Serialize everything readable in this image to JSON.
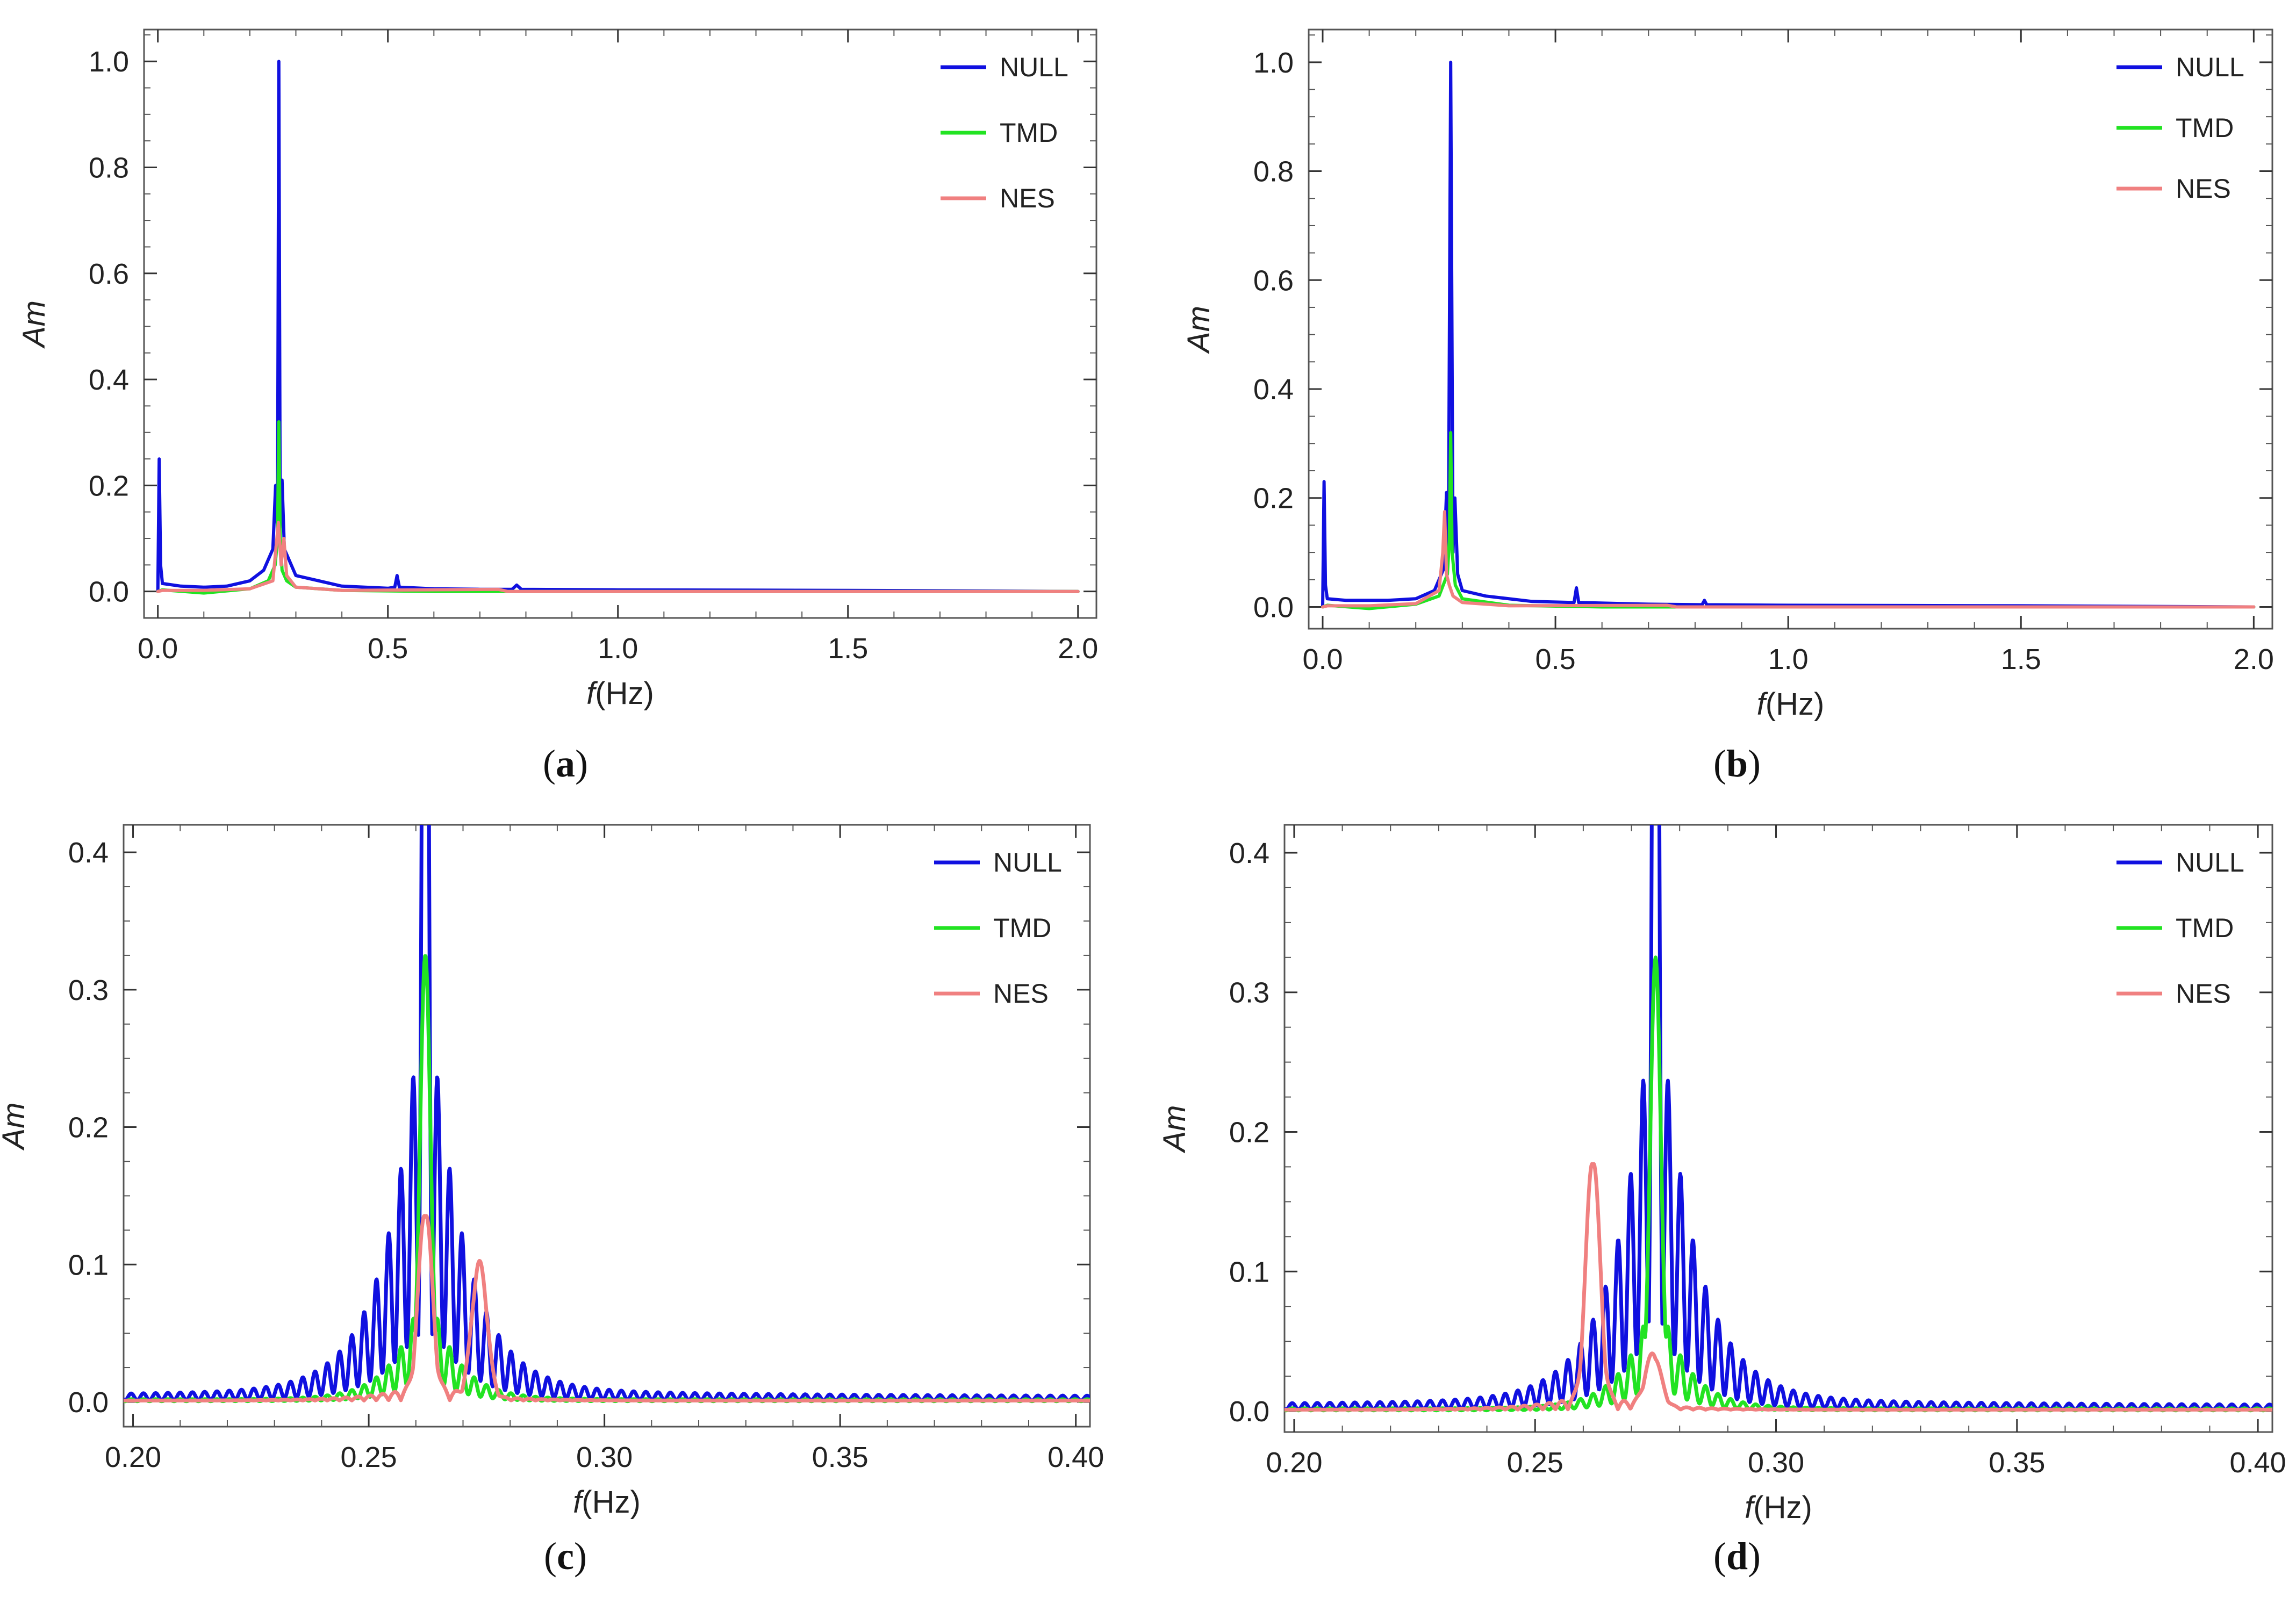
{
  "figure": {
    "colors": {
      "NULL": "#1010e0",
      "TMD": "#22e322",
      "NES": "#f08080"
    },
    "legend": [
      "NULL",
      "TMD",
      "NES"
    ]
  },
  "chart_data": [
    {
      "panel_label": "a",
      "type": "line",
      "xlabel_italic": "f",
      "xlabel_unit": "(Hz)",
      "ylabel": "Am",
      "xlim": [
        -0.03,
        2.04
      ],
      "ylim": [
        -0.05,
        1.06
      ],
      "xticks": [
        0.0,
        0.5,
        1.0,
        1.5,
        2.0
      ],
      "xtick_labels": [
        "0.0",
        "0.5",
        "1.0",
        "1.5",
        "2.0"
      ],
      "yticks": [
        0.0,
        0.2,
        0.4,
        0.6,
        0.8,
        1.0
      ],
      "ytick_labels": [
        "0.0",
        "0.2",
        "0.4",
        "0.6",
        "0.8",
        "1.0"
      ],
      "legend_position": "top-right",
      "series": [
        {
          "name": "NULL",
          "points": [
            [
              0.0,
              0.0
            ],
            [
              0.003,
              0.25
            ],
            [
              0.006,
              0.05
            ],
            [
              0.01,
              0.015
            ],
            [
              0.05,
              0.01
            ],
            [
              0.1,
              0.008
            ],
            [
              0.15,
              0.01
            ],
            [
              0.2,
              0.02
            ],
            [
              0.23,
              0.04
            ],
            [
              0.25,
              0.08
            ],
            [
              0.256,
              0.2
            ],
            [
              0.26,
              0.12
            ],
            [
              0.263,
              1.0
            ],
            [
              0.266,
              0.12
            ],
            [
              0.27,
              0.21
            ],
            [
              0.275,
              0.08
            ],
            [
              0.3,
              0.03
            ],
            [
              0.35,
              0.02
            ],
            [
              0.4,
              0.01
            ],
            [
              0.45,
              0.008
            ],
            [
              0.5,
              0.006
            ],
            [
              0.515,
              0.008
            ],
            [
              0.52,
              0.03
            ],
            [
              0.525,
              0.008
            ],
            [
              0.6,
              0.005
            ],
            [
              0.7,
              0.004
            ],
            [
              0.77,
              0.004
            ],
            [
              0.78,
              0.012
            ],
            [
              0.79,
              0.004
            ],
            [
              1.0,
              0.003
            ],
            [
              1.5,
              0.002
            ],
            [
              2.0,
              0.0
            ]
          ]
        },
        {
          "name": "TMD",
          "points": [
            [
              0.0,
              0.0
            ],
            [
              0.01,
              0.003
            ],
            [
              0.1,
              -0.003
            ],
            [
              0.2,
              0.005
            ],
            [
              0.24,
              0.02
            ],
            [
              0.255,
              0.05
            ],
            [
              0.26,
              0.1
            ],
            [
              0.263,
              0.32
            ],
            [
              0.266,
              0.1
            ],
            [
              0.27,
              0.04
            ],
            [
              0.28,
              0.02
            ],
            [
              0.3,
              0.008
            ],
            [
              0.4,
              0.002
            ],
            [
              0.6,
              0.0
            ],
            [
              1.0,
              0.0
            ],
            [
              2.0,
              0.0
            ]
          ]
        },
        {
          "name": "NES",
          "points": [
            [
              0.0,
              0.0
            ],
            [
              0.01,
              0.002
            ],
            [
              0.1,
              0.002
            ],
            [
              0.2,
              0.005
            ],
            [
              0.25,
              0.02
            ],
            [
              0.262,
              0.13
            ],
            [
              0.268,
              0.05
            ],
            [
              0.274,
              0.1
            ],
            [
              0.28,
              0.03
            ],
            [
              0.3,
              0.008
            ],
            [
              0.4,
              0.002
            ],
            [
              0.74,
              0.004
            ],
            [
              0.76,
              0.0
            ],
            [
              1.0,
              0.0
            ],
            [
              2.0,
              0.0
            ]
          ]
        }
      ]
    },
    {
      "panel_label": "b",
      "type": "line",
      "xlabel_italic": "f",
      "xlabel_unit": "(Hz)",
      "ylabel": "Am",
      "xlim": [
        -0.03,
        2.04
      ],
      "ylim": [
        -0.04,
        1.06
      ],
      "xticks": [
        0.0,
        0.5,
        1.0,
        1.5,
        2.0
      ],
      "xtick_labels": [
        "0.0",
        "0.5",
        "1.0",
        "1.5",
        "2.0"
      ],
      "yticks": [
        0.0,
        0.2,
        0.4,
        0.6,
        0.8,
        1.0
      ],
      "ytick_labels": [
        "0.0",
        "0.2",
        "0.4",
        "0.6",
        "0.8",
        "1.0"
      ],
      "legend_position": "top-right",
      "series": [
        {
          "name": "NULL",
          "points": [
            [
              0.0,
              0.0
            ],
            [
              0.003,
              0.23
            ],
            [
              0.006,
              0.04
            ],
            [
              0.01,
              0.015
            ],
            [
              0.05,
              0.012
            ],
            [
              0.14,
              0.012
            ],
            [
              0.2,
              0.015
            ],
            [
              0.24,
              0.03
            ],
            [
              0.26,
              0.07
            ],
            [
              0.266,
              0.21
            ],
            [
              0.27,
              0.1
            ],
            [
              0.275,
              1.0
            ],
            [
              0.28,
              0.1
            ],
            [
              0.284,
              0.2
            ],
            [
              0.29,
              0.06
            ],
            [
              0.3,
              0.03
            ],
            [
              0.35,
              0.02
            ],
            [
              0.45,
              0.01
            ],
            [
              0.54,
              0.008
            ],
            [
              0.545,
              0.035
            ],
            [
              0.55,
              0.008
            ],
            [
              0.7,
              0.005
            ],
            [
              0.815,
              0.004
            ],
            [
              0.82,
              0.012
            ],
            [
              0.825,
              0.004
            ],
            [
              1.0,
              0.003
            ],
            [
              1.5,
              0.002
            ],
            [
              2.0,
              0.0
            ]
          ]
        },
        {
          "name": "TMD",
          "points": [
            [
              0.0,
              0.0
            ],
            [
              0.01,
              0.003
            ],
            [
              0.1,
              -0.003
            ],
            [
              0.2,
              0.005
            ],
            [
              0.25,
              0.02
            ],
            [
              0.268,
              0.06
            ],
            [
              0.272,
              0.12
            ],
            [
              0.275,
              0.32
            ],
            [
              0.278,
              0.1
            ],
            [
              0.285,
              0.04
            ],
            [
              0.3,
              0.015
            ],
            [
              0.4,
              0.003
            ],
            [
              0.6,
              0.0
            ],
            [
              1.0,
              0.0
            ],
            [
              2.0,
              0.0
            ]
          ]
        },
        {
          "name": "NES",
          "points": [
            [
              0.0,
              0.0
            ],
            [
              0.01,
              0.002
            ],
            [
              0.1,
              0.002
            ],
            [
              0.2,
              0.006
            ],
            [
              0.25,
              0.03
            ],
            [
              0.258,
              0.1
            ],
            [
              0.262,
              0.175
            ],
            [
              0.266,
              0.06
            ],
            [
              0.272,
              0.04
            ],
            [
              0.28,
              0.02
            ],
            [
              0.3,
              0.008
            ],
            [
              0.4,
              0.002
            ],
            [
              0.74,
              0.003
            ],
            [
              0.76,
              0.0
            ],
            [
              1.0,
              0.0
            ],
            [
              2.0,
              0.0
            ]
          ]
        }
      ]
    },
    {
      "panel_label": "c",
      "type": "line",
      "xlabel_italic": "f",
      "xlabel_unit": "(Hz)",
      "ylabel": "Am",
      "xlim": [
        0.198,
        0.403
      ],
      "ylim": [
        -0.018,
        0.42
      ],
      "xticks": [
        0.2,
        0.25,
        0.3,
        0.35,
        0.4
      ],
      "xtick_labels": [
        "0.20",
        "0.25",
        "0.30",
        "0.35",
        "0.40"
      ],
      "yticks": [
        0.0,
        0.1,
        0.2,
        0.3,
        0.4
      ],
      "ytick_labels": [
        "0.0",
        "0.1",
        "0.2",
        "0.3",
        "0.4"
      ],
      "legend_position": "top-right",
      "synthesis": {
        "NULL": {
          "center": 0.262,
          "main_peak": 1.0,
          "envelope_amp": 0.32,
          "envelope_width": 0.0075,
          "floor": 0.004,
          "period": 0.0026
        },
        "TMD": {
          "center": 0.262,
          "main_peak": 0.325,
          "envelope_amp": 0.09,
          "envelope_width": 0.006,
          "floor": 0.002,
          "period": 0.0026
        },
        "NES": {
          "center": 0.262,
          "main_peak": 0.133,
          "secondary_center": 0.2735,
          "secondary_peak": 0.098,
          "floor": 0.001
        }
      }
    },
    {
      "panel_label": "d",
      "type": "line",
      "xlabel_italic": "f",
      "xlabel_unit": "(Hz)",
      "ylabel": "Am",
      "xlim": [
        0.198,
        0.403
      ],
      "ylim": [
        -0.015,
        0.42
      ],
      "xticks": [
        0.2,
        0.25,
        0.3,
        0.35,
        0.4
      ],
      "xtick_labels": [
        "0.20",
        "0.25",
        "0.30",
        "0.35",
        "0.40"
      ],
      "yticks": [
        0.0,
        0.1,
        0.2,
        0.3,
        0.4
      ],
      "ytick_labels": [
        "0.0",
        "0.1",
        "0.2",
        "0.3",
        "0.4"
      ],
      "legend_position": "top-right",
      "synthesis": {
        "NULL": {
          "center": 0.275,
          "main_peak": 1.0,
          "envelope_amp": 0.32,
          "envelope_width": 0.0075,
          "floor": 0.004,
          "period": 0.0026
        },
        "TMD": {
          "center": 0.275,
          "main_peak": 0.325,
          "envelope_amp": 0.09,
          "envelope_width": 0.006,
          "floor": 0.002,
          "period": 0.0026
        },
        "NES": {
          "center": 0.262,
          "main_peak": 0.175,
          "secondary_center": 0.2745,
          "secondary_peak": 0.038,
          "floor": 0.001
        }
      }
    }
  ]
}
